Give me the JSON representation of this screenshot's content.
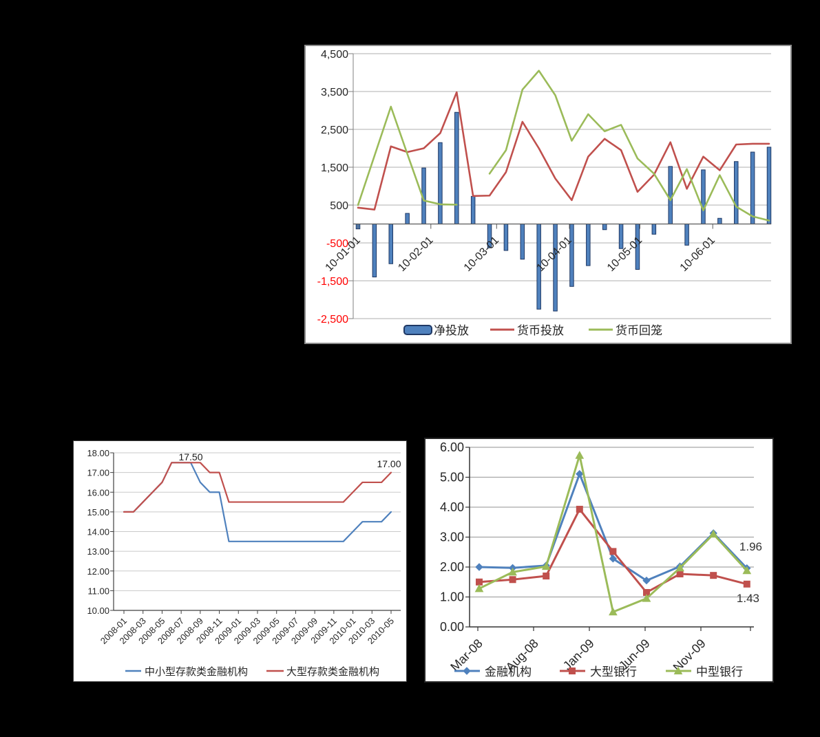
{
  "page": {
    "background": "#000000"
  },
  "colors": {
    "bar_fill": "#4F81BD",
    "bar_border": "#1F3864",
    "red_series": "#C0504D",
    "green_series": "#9BBB59",
    "blue_series": "#4F81BD",
    "negative_tick": "#FF0000",
    "axis_text": "#262626",
    "gridline": "#BFBFBF",
    "axis_line": "#808080"
  },
  "chart_data": [
    {
      "id": "weekly-open-market-operations",
      "type": "bar-line-combo",
      "x_unit": "weekly points, Jan-Jun 2010",
      "x_tick_labels": [
        "10-01-01",
        "10-02-01",
        "10-03-01",
        "10-04-01",
        "10-05-01",
        "10-06-01"
      ],
      "ylim": [
        -2500,
        4500
      ],
      "y_tick_values": [
        4500,
        3500,
        2500,
        1500,
        500,
        -500,
        -1500,
        -2500
      ],
      "y_tick_labels": [
        "4,500",
        "3,500",
        "2,500",
        "1,500",
        "500",
        "-500",
        "-1,500",
        "-2,500"
      ],
      "grid": true,
      "legend_position": "bottom",
      "series": [
        {
          "name": "净投放",
          "type": "bar",
          "color": "#4F81BD",
          "border_color": "#1F3864",
          "values": [
            -130,
            -1400,
            -1050,
            280,
            1480,
            2150,
            2950,
            730,
            -630,
            -700,
            -930,
            -2250,
            -2300,
            -1650,
            -1100,
            -150,
            -650,
            -1200,
            -270,
            1520,
            -560,
            1430,
            150,
            1650,
            1900,
            2030
          ]
        },
        {
          "name": "货币投放",
          "type": "line",
          "color": "#C0504D",
          "values": [
            430,
            380,
            2050,
            1900,
            2000,
            2400,
            3480,
            740,
            750,
            1370,
            2700,
            2000,
            1200,
            630,
            1780,
            2250,
            1950,
            850,
            1300,
            2160,
            930,
            1780,
            1420,
            2100,
            2120,
            2120
          ]
        },
        {
          "name": "货币回笼",
          "type": "line",
          "color": "#9BBB59",
          "values": [
            500,
            1800,
            3100,
            1850,
            620,
            520,
            510,
            null,
            1330,
            1950,
            3550,
            4050,
            3400,
            2200,
            2900,
            2450,
            2620,
            1730,
            1330,
            630,
            1450,
            360,
            1290,
            460,
            200,
            90
          ]
        }
      ]
    },
    {
      "id": "reserve-requirement-ratio",
      "type": "line",
      "categories": [
        "2008-01",
        "2008-02",
        "2008-03",
        "2008-04",
        "2008-05",
        "2008-06",
        "2008-07",
        "2008-08",
        "2008-09",
        "2008-10",
        "2008-11",
        "2008-12",
        "2009-01",
        "2009-02",
        "2009-03",
        "2009-04",
        "2009-05",
        "2009-06",
        "2009-07",
        "2009-08",
        "2009-09",
        "2009-10",
        "2009-11",
        "2009-12",
        "2010-01",
        "2010-02",
        "2010-03",
        "2010-04",
        "2010-05"
      ],
      "x_tick_labels": [
        "2008-01",
        "2008-03",
        "2008-05",
        "2008-07",
        "2008-09",
        "2008-11",
        "2009-01",
        "2009-03",
        "2009-05",
        "2009-07",
        "2009-09",
        "2009-11",
        "2010-01",
        "2010-03",
        "2010-05"
      ],
      "ylim": [
        10,
        18
      ],
      "y_tick_labels": [
        "18.00",
        "17.00",
        "16.00",
        "15.00",
        "14.00",
        "13.00",
        "12.00",
        "11.00",
        "10.00"
      ],
      "grid": true,
      "legend_position": "bottom",
      "series": [
        {
          "name": "中小型存款类金融机构",
          "color": "#4F81BD",
          "values": [
            15.0,
            15.0,
            15.5,
            16.0,
            16.5,
            17.5,
            17.5,
            17.5,
            16.5,
            16.0,
            16.0,
            13.5,
            13.5,
            13.5,
            13.5,
            13.5,
            13.5,
            13.5,
            13.5,
            13.5,
            13.5,
            13.5,
            13.5,
            13.5,
            14.0,
            14.5,
            14.5,
            14.5,
            15.0
          ]
        },
        {
          "name": "大型存款类金融机构",
          "color": "#C0504D",
          "values": [
            15.0,
            15.0,
            15.5,
            16.0,
            16.5,
            17.5,
            17.5,
            17.5,
            17.5,
            17.0,
            17.0,
            15.5,
            15.5,
            15.5,
            15.5,
            15.5,
            15.5,
            15.5,
            15.5,
            15.5,
            15.5,
            15.5,
            15.5,
            15.5,
            16.0,
            16.5,
            16.5,
            16.5,
            17.0
          ]
        }
      ],
      "annotations": [
        {
          "text": "17.50"
        },
        {
          "text": "17.00"
        }
      ]
    },
    {
      "id": "excess-reserve-ratio",
      "type": "line-markers",
      "x_unit": "quarterly points, Mar-08 to Mar-10",
      "x_tick_labels": [
        "Mar-08",
        "Aug-08",
        "Jan-09",
        "Jun-09",
        "Nov-09"
      ],
      "ylim": [
        0,
        6
      ],
      "y_tick_labels": [
        "6.00",
        "5.00",
        "4.00",
        "3.00",
        "2.00",
        "1.00",
        "0.00"
      ],
      "grid": true,
      "legend_position": "bottom",
      "series": [
        {
          "name": "金融机构",
          "color": "#4F81BD",
          "marker": "diamond",
          "values": [
            2.0,
            1.97,
            2.05,
            5.11,
            2.28,
            1.55,
            2.02,
            3.13,
            1.96
          ]
        },
        {
          "name": "大型银行",
          "color": "#C0504D",
          "marker": "square",
          "values": [
            1.5,
            1.58,
            1.7,
            3.93,
            2.52,
            1.15,
            1.77,
            1.72,
            1.43
          ]
        },
        {
          "name": "中型银行",
          "color": "#9BBB59",
          "marker": "triangle",
          "values": [
            1.28,
            1.83,
            2.02,
            5.73,
            0.5,
            0.95,
            1.97,
            3.1,
            1.88
          ]
        }
      ],
      "annotations": [
        {
          "text": "1.96"
        },
        {
          "text": "1.43"
        }
      ]
    }
  ]
}
